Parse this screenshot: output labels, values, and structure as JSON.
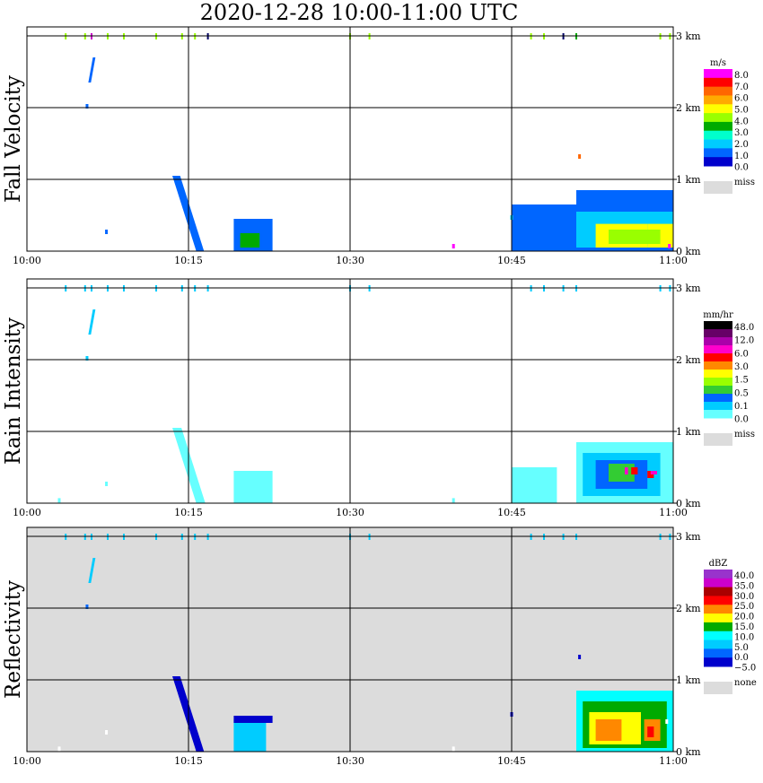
{
  "title": "2020-12-28   10:00-11:00 UTC",
  "colors": {
    "miss": "#dcdcdc",
    "grid": "#000000",
    "background": "#ffffff"
  },
  "chart_data": [
    {
      "type": "heatmap",
      "ylabel": "Fall Velocity",
      "x_ticks": [
        "10:00",
        "10:15",
        "10:30",
        "10:45",
        "11:00"
      ],
      "y_ticks": [
        "0 km",
        "1 km",
        "2 km",
        "3 km"
      ],
      "ylim_km": [
        0,
        3.5
      ],
      "xlim": [
        "10:00",
        "11:00"
      ],
      "legend": {
        "unit": "m/s",
        "labels": [
          "8.0",
          "7.0",
          "6.0",
          "5.0",
          "4.0",
          "3.0",
          "2.0",
          "1.0",
          "0.0"
        ],
        "miss_label": "miss",
        "colors": [
          "#ff00ff",
          "#ff0000",
          "#ff6600",
          "#ffaa00",
          "#ffff00",
          "#99ff00",
          "#00aa00",
          "#00ffcc",
          "#00ccff",
          "#0066ff",
          "#0000cc"
        ]
      },
      "full_background_miss": false,
      "cells": [
        {
          "t0": 10.75,
          "t1": 10.85,
          "h0": 0.0,
          "h1": 0.65,
          "color": "#0066ff"
        },
        {
          "t0": 10.85,
          "t1": 11.0,
          "h0": 0.0,
          "h1": 0.85,
          "color": "#0066ff"
        },
        {
          "t0": 10.85,
          "t1": 11.0,
          "h0": 0.05,
          "h1": 0.55,
          "color": "#00ccff"
        },
        {
          "t0": 10.88,
          "t1": 10.96,
          "h0": 0.05,
          "h1": 0.38,
          "color": "#ffff00"
        },
        {
          "t0": 10.96,
          "t1": 11.0,
          "h0": 0.05,
          "h1": 0.38,
          "color": "#ffff00"
        },
        {
          "t0": 10.9,
          "t1": 10.98,
          "h0": 0.1,
          "h1": 0.3,
          "color": "#99ff00"
        },
        {
          "t0": 10.32,
          "t1": 10.38,
          "h0": 0.0,
          "h1": 0.45,
          "color": "#0066ff"
        },
        {
          "t0": 10.33,
          "t1": 10.36,
          "h0": 0.05,
          "h1": 0.25,
          "color": "#00aa00"
        }
      ],
      "slants": [
        {
          "t_top": 10.225,
          "h_top": 1.05,
          "t_bot": 10.262,
          "h_bot": 0.0,
          "width": 0.012,
          "color": "#0066ff"
        },
        {
          "t_top": 10.102,
          "h_top": 2.7,
          "t_bot": 10.095,
          "h_bot": 2.35,
          "width": 0.004,
          "color": "#0066ff"
        }
      ],
      "specks": [
        {
          "t": 10.093,
          "h": 2.0,
          "color": "#0066ff"
        },
        {
          "t": 10.123,
          "h": 0.25,
          "color": "#0066ff"
        },
        {
          "t": 10.75,
          "h": 0.45,
          "color": "#00ccff"
        },
        {
          "t": 10.66,
          "h": 0.05,
          "color": "#ff00ff"
        },
        {
          "t": 10.855,
          "h": 1.3,
          "color": "#ff6600"
        },
        {
          "t": 10.994,
          "h": 0.05,
          "color": "#ff00ff"
        }
      ],
      "top_marks": [
        {
          "t": 10.06,
          "color": "#99ff00"
        },
        {
          "t": 10.09,
          "color": "#99ff00"
        },
        {
          "t": 10.1,
          "color": "#cc00cc"
        },
        {
          "t": 10.125,
          "color": "#99ff00"
        },
        {
          "t": 10.15,
          "color": "#99ff00"
        },
        {
          "t": 10.2,
          "color": "#99ff00"
        },
        {
          "t": 10.24,
          "color": "#99ff00"
        },
        {
          "t": 10.26,
          "color": "#99ff00"
        },
        {
          "t": 10.28,
          "color": "#000066"
        },
        {
          "t": 10.5,
          "color": "#99ff00"
        },
        {
          "t": 10.53,
          "color": "#99ff00"
        },
        {
          "t": 10.78,
          "color": "#99ff00"
        },
        {
          "t": 10.8,
          "color": "#99ff00"
        },
        {
          "t": 10.83,
          "color": "#000066"
        },
        {
          "t": 10.85,
          "color": "#00aa00"
        },
        {
          "t": 10.98,
          "color": "#99ff00"
        },
        {
          "t": 10.995,
          "color": "#99ff00"
        }
      ]
    },
    {
      "type": "heatmap",
      "ylabel": "Rain Intensity",
      "x_ticks": [
        "10:00",
        "10:15",
        "10:30",
        "10:45",
        "11:00"
      ],
      "y_ticks": [
        "0 km",
        "1 km",
        "2 km",
        "3 km"
      ],
      "ylim_km": [
        0,
        3.5
      ],
      "xlim": [
        "10:00",
        "11:00"
      ],
      "legend": {
        "unit": "mm/hr",
        "labels": [
          "48.0",
          "12.0",
          "6.0",
          "3.0",
          "1.5",
          "0.5",
          "0.1",
          "0.0"
        ],
        "miss_label": "miss",
        "colors": [
          "#000000",
          "#660066",
          "#aa00aa",
          "#ff00cc",
          "#ff0000",
          "#ff8800",
          "#ffff00",
          "#99ff00",
          "#33cc33",
          "#0066ff",
          "#00ccff",
          "#66ffff"
        ]
      },
      "full_background_miss": false,
      "cells": [
        {
          "t0": 10.85,
          "t1": 11.0,
          "h0": 0.0,
          "h1": 0.85,
          "color": "#66ffff"
        },
        {
          "t0": 10.86,
          "t1": 10.98,
          "h0": 0.1,
          "h1": 0.7,
          "color": "#00ccff"
        },
        {
          "t0": 10.88,
          "t1": 10.96,
          "h0": 0.2,
          "h1": 0.6,
          "color": "#0066ff"
        },
        {
          "t0": 10.9,
          "t1": 10.94,
          "h0": 0.3,
          "h1": 0.55,
          "color": "#33cc33"
        },
        {
          "t0": 10.925,
          "t1": 10.93,
          "h0": 0.4,
          "h1": 0.5,
          "color": "#ff00cc"
        },
        {
          "t0": 10.935,
          "t1": 10.945,
          "h0": 0.4,
          "h1": 0.5,
          "color": "#ff0000"
        },
        {
          "t0": 10.96,
          "t1": 10.97,
          "h0": 0.35,
          "h1": 0.45,
          "color": "#ff0000"
        },
        {
          "t0": 10.965,
          "t1": 10.975,
          "h0": 0.4,
          "h1": 0.45,
          "color": "#ff00cc"
        },
        {
          "t0": 10.32,
          "t1": 10.38,
          "h0": 0.0,
          "h1": 0.45,
          "color": "#66ffff"
        },
        {
          "t0": 10.75,
          "t1": 10.82,
          "h0": 0.0,
          "h1": 0.5,
          "color": "#66ffff"
        }
      ],
      "slants": [
        {
          "t_top": 10.225,
          "h_top": 1.05,
          "t_bot": 10.262,
          "h_bot": 0.0,
          "width": 0.014,
          "color": "#66ffff"
        },
        {
          "t_top": 10.102,
          "h_top": 2.7,
          "t_bot": 10.095,
          "h_bot": 2.35,
          "width": 0.004,
          "color": "#00ccff"
        }
      ],
      "specks": [
        {
          "t": 10.093,
          "h": 2.0,
          "color": "#00ccff"
        },
        {
          "t": 10.123,
          "h": 0.25,
          "color": "#66ffff"
        },
        {
          "t": 10.05,
          "h": 0.02,
          "color": "#66ffff"
        },
        {
          "t": 10.66,
          "h": 0.02,
          "color": "#66ffff"
        }
      ],
      "top_marks": [
        {
          "t": 10.06,
          "color": "#00ccff"
        },
        {
          "t": 10.09,
          "color": "#00ccff"
        },
        {
          "t": 10.1,
          "color": "#00ccff"
        },
        {
          "t": 10.125,
          "color": "#00ccff"
        },
        {
          "t": 10.15,
          "color": "#00ccff"
        },
        {
          "t": 10.2,
          "color": "#00ccff"
        },
        {
          "t": 10.24,
          "color": "#00ccff"
        },
        {
          "t": 10.26,
          "color": "#00ccff"
        },
        {
          "t": 10.28,
          "color": "#00ccff"
        },
        {
          "t": 10.5,
          "color": "#00ccff"
        },
        {
          "t": 10.53,
          "color": "#00ccff"
        },
        {
          "t": 10.78,
          "color": "#00ccff"
        },
        {
          "t": 10.8,
          "color": "#00ccff"
        },
        {
          "t": 10.83,
          "color": "#00ccff"
        },
        {
          "t": 10.85,
          "color": "#00ccff"
        },
        {
          "t": 10.98,
          "color": "#00ccff"
        },
        {
          "t": 10.995,
          "color": "#00ccff"
        }
      ]
    },
    {
      "type": "heatmap",
      "ylabel": "Reflectivity",
      "x_ticks": [
        "10:00",
        "10:15",
        "10:30",
        "10:45",
        "11:00"
      ],
      "y_ticks": [
        "0 km",
        "1 km",
        "2 km",
        "3 km"
      ],
      "ylim_km": [
        0,
        3.5
      ],
      "xlim": [
        "10:00",
        "11:00"
      ],
      "legend": {
        "unit": "dBZ",
        "labels": [
          "40.0",
          "35.0",
          "30.0",
          "25.0",
          "20.0",
          "15.0",
          "10.0",
          "5.0",
          "0.0",
          "−5.0"
        ],
        "miss_label": "none",
        "colors": [
          "#9933cc",
          "#cc00cc",
          "#aa0000",
          "#ff0000",
          "#ff8800",
          "#ffff00",
          "#00aa00",
          "#00ffff",
          "#00ccff",
          "#0066ff",
          "#0000cc"
        ]
      },
      "full_background_miss": true,
      "cells": [
        {
          "t0": 10.85,
          "t1": 11.0,
          "h0": 0.0,
          "h1": 0.85,
          "color": "#00ffff"
        },
        {
          "t0": 10.86,
          "t1": 10.99,
          "h0": 0.05,
          "h1": 0.7,
          "color": "#00aa00"
        },
        {
          "t0": 10.87,
          "t1": 10.95,
          "h0": 0.1,
          "h1": 0.55,
          "color": "#ffff00"
        },
        {
          "t0": 10.88,
          "t1": 10.92,
          "h0": 0.15,
          "h1": 0.45,
          "color": "#ff8800"
        },
        {
          "t0": 10.955,
          "t1": 10.98,
          "h0": 0.15,
          "h1": 0.45,
          "color": "#ff8800"
        },
        {
          "t0": 10.96,
          "t1": 10.97,
          "h0": 0.2,
          "h1": 0.35,
          "color": "#ff0000"
        },
        {
          "t0": 10.32,
          "t1": 10.37,
          "h0": 0.0,
          "h1": 0.45,
          "color": "#00ccff"
        },
        {
          "t0": 10.32,
          "t1": 10.38,
          "h0": 0.4,
          "h1": 0.5,
          "color": "#0000cc"
        }
      ],
      "slants": [
        {
          "t_top": 10.225,
          "h_top": 1.05,
          "t_bot": 10.262,
          "h_bot": 0.0,
          "width": 0.012,
          "color": "#0000cc"
        },
        {
          "t_top": 10.102,
          "h_top": 2.7,
          "t_bot": 10.095,
          "h_bot": 2.35,
          "width": 0.004,
          "color": "#00ccff"
        }
      ],
      "specks": [
        {
          "t": 10.093,
          "h": 2.0,
          "color": "#0066ff"
        },
        {
          "t": 10.123,
          "h": 0.25,
          "color": "#ffffff"
        },
        {
          "t": 10.05,
          "h": 0.02,
          "color": "#ffffff"
        },
        {
          "t": 10.855,
          "h": 1.3,
          "color": "#0000cc"
        },
        {
          "t": 10.66,
          "h": 0.02,
          "color": "#ffffff"
        },
        {
          "t": 10.99,
          "h": 0.4,
          "color": "#ffffff"
        },
        {
          "t": 10.75,
          "h": 0.5,
          "color": "#0000cc"
        }
      ],
      "top_marks": [
        {
          "t": 10.06,
          "color": "#00ccff"
        },
        {
          "t": 10.09,
          "color": "#00ccff"
        },
        {
          "t": 10.1,
          "color": "#00ccff"
        },
        {
          "t": 10.125,
          "color": "#00ccff"
        },
        {
          "t": 10.15,
          "color": "#00ccff"
        },
        {
          "t": 10.2,
          "color": "#00ccff"
        },
        {
          "t": 10.24,
          "color": "#00ccff"
        },
        {
          "t": 10.26,
          "color": "#00ccff"
        },
        {
          "t": 10.28,
          "color": "#00ccff"
        },
        {
          "t": 10.5,
          "color": "#00ccff"
        },
        {
          "t": 10.53,
          "color": "#00ccff"
        },
        {
          "t": 10.78,
          "color": "#00ccff"
        },
        {
          "t": 10.8,
          "color": "#00ccff"
        },
        {
          "t": 10.83,
          "color": "#00ccff"
        },
        {
          "t": 10.85,
          "color": "#00ccff"
        },
        {
          "t": 10.98,
          "color": "#00ccff"
        },
        {
          "t": 10.995,
          "color": "#00ccff"
        }
      ]
    }
  ]
}
